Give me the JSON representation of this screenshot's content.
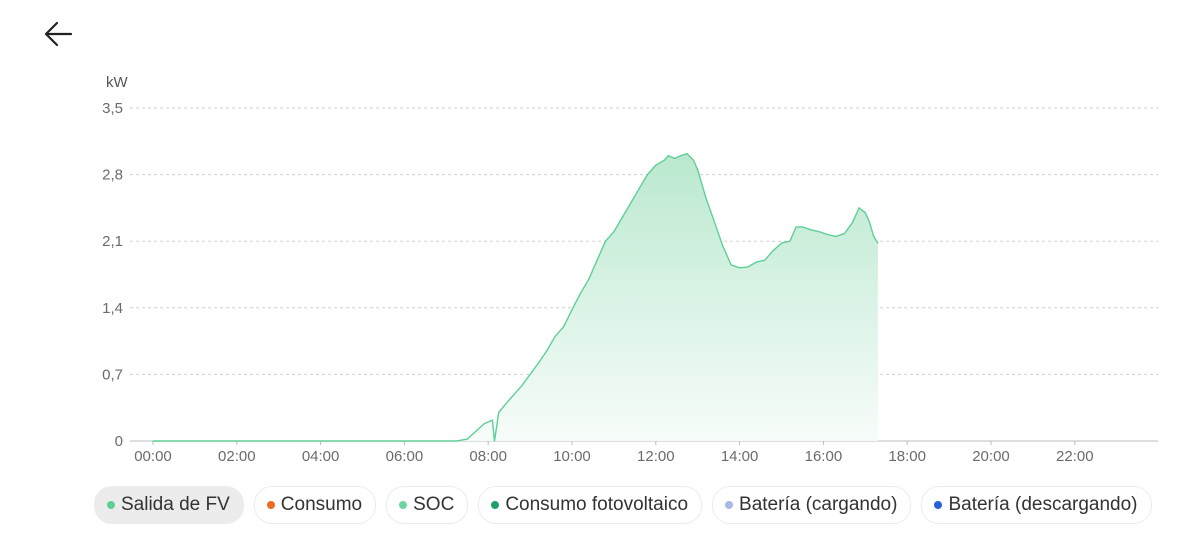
{
  "header": {
    "back_icon": "arrow-left-icon"
  },
  "colors": {
    "accent": "#5fcf96",
    "grid": "#cfcfcf",
    "axis": "#bdbdbd",
    "fill_top": "#b6e7cc",
    "fill_bottom": "#f6fcf9"
  },
  "chart_data": {
    "type": "area",
    "unit_label": "kW",
    "xlabel": "",
    "ylabel": "kW",
    "ylim": [
      0,
      3.5
    ],
    "xlim": [
      0,
      24
    ],
    "y_ticks": [
      "0",
      "0,7",
      "1,4",
      "2,1",
      "2,8",
      "3,5"
    ],
    "x_ticks": [
      "00:00",
      "02:00",
      "04:00",
      "06:00",
      "08:00",
      "10:00",
      "12:00",
      "14:00",
      "16:00",
      "18:00",
      "20:00",
      "22:00"
    ],
    "grid": true,
    "series": [
      {
        "name": "Salida de FV",
        "x": [
          0,
          7.25,
          7.5,
          7.7,
          7.9,
          8.1,
          8.15,
          8.25,
          8.4,
          8.6,
          8.8,
          9.0,
          9.2,
          9.4,
          9.6,
          9.8,
          10.0,
          10.2,
          10.4,
          10.6,
          10.8,
          11.0,
          11.2,
          11.4,
          11.6,
          11.8,
          12.0,
          12.2,
          12.3,
          12.45,
          12.6,
          12.75,
          12.9,
          13.0,
          13.2,
          13.4,
          13.6,
          13.8,
          14.0,
          14.2,
          14.4,
          14.6,
          14.8,
          15.0,
          15.2,
          15.35,
          15.5,
          15.7,
          15.9,
          16.1,
          16.3,
          16.5,
          16.7,
          16.85,
          17.0,
          17.1,
          17.2,
          17.3
        ],
        "values": [
          0,
          0,
          0.02,
          0.1,
          0.18,
          0.22,
          0.0,
          0.3,
          0.38,
          0.48,
          0.58,
          0.7,
          0.82,
          0.95,
          1.1,
          1.2,
          1.38,
          1.55,
          1.7,
          1.9,
          2.1,
          2.2,
          2.35,
          2.5,
          2.65,
          2.8,
          2.9,
          2.95,
          3.0,
          2.97,
          3.0,
          3.02,
          2.95,
          2.85,
          2.55,
          2.3,
          2.05,
          1.85,
          1.82,
          1.83,
          1.88,
          1.9,
          2.0,
          2.08,
          2.1,
          2.25,
          2.25,
          2.22,
          2.2,
          2.17,
          2.15,
          2.18,
          2.3,
          2.45,
          2.4,
          2.3,
          2.15,
          2.08
        ]
      }
    ],
    "legend": [
      {
        "label": "Salida de FV",
        "color": "#5fcf96",
        "active": true
      },
      {
        "label": "Consumo",
        "color": "#f26a21",
        "active": false
      },
      {
        "label": "SOC",
        "color": "#6fd3a3",
        "active": false
      },
      {
        "label": "Consumo fotovoltaico",
        "color": "#1f9e67",
        "active": false
      },
      {
        "label": "Batería (cargando)",
        "color": "#a9b8e6",
        "active": false
      },
      {
        "label": "Batería (descargando)",
        "color": "#2a5fdb",
        "active": false
      }
    ]
  }
}
